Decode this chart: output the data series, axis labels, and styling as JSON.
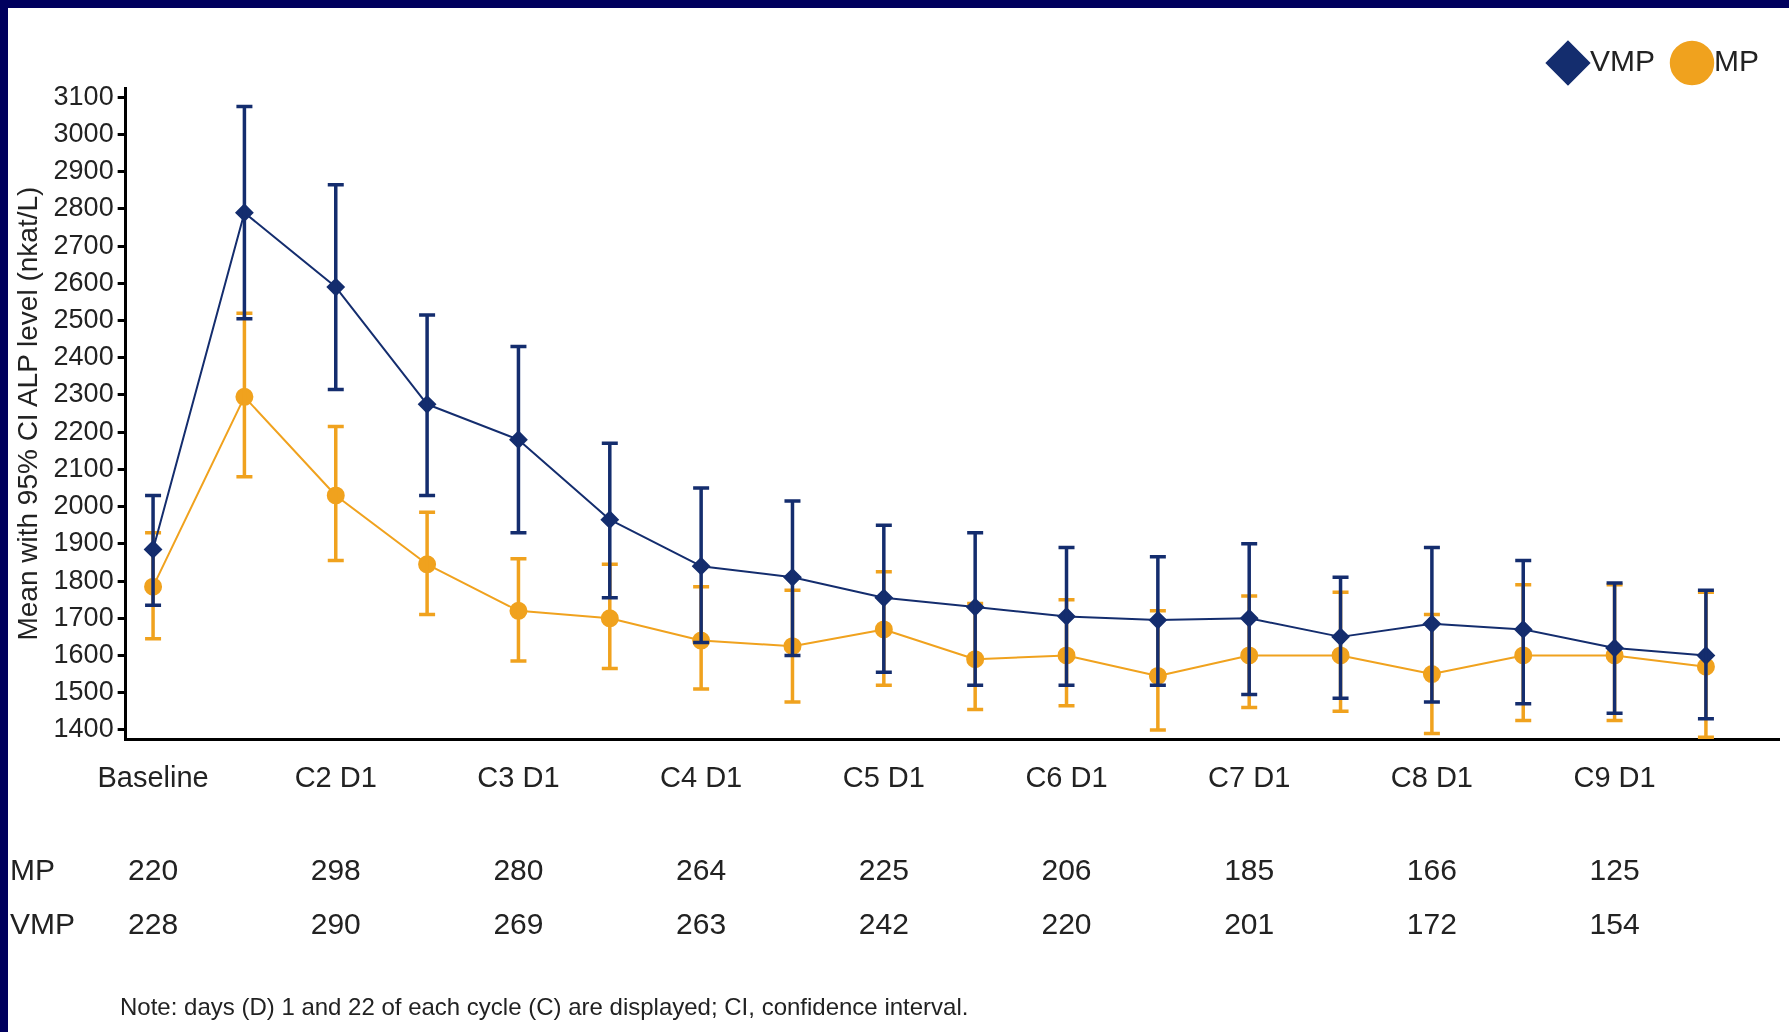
{
  "chart_data": {
    "type": "line",
    "ylabel": "Mean with 95% CI ALP level (nkat/L)",
    "categories": [
      "Baseline",
      null,
      "C2 D1",
      null,
      "C3 D1",
      null,
      "C4 D1",
      null,
      "C5 D1",
      null,
      "C6 D1",
      null,
      "C7 D1",
      null,
      "C8 D1",
      null,
      "C9 D1",
      null
    ],
    "ylim": [
      1375,
      3125
    ],
    "yticks": [
      1400,
      1500,
      1600,
      1700,
      1800,
      1900,
      2000,
      2100,
      2200,
      2300,
      2400,
      2500,
      2600,
      2700,
      2800,
      2900,
      3000,
      3100
    ],
    "legend": "top right",
    "line_style": "solid",
    "series": [
      {
        "name": "VMP",
        "color": "#142d6e",
        "marker": "diamond",
        "values": [
          1885,
          2790,
          2590,
          2275,
          2180,
          1965,
          1840,
          1810,
          1755,
          1730,
          1705,
          1695,
          1700,
          1650,
          1685,
          1670,
          1620,
          1600
        ],
        "errors": [
          [
            1735,
            2030
          ],
          [
            2505,
            3075
          ],
          [
            2315,
            2865
          ],
          [
            2030,
            2515
          ],
          [
            1930,
            2430
          ],
          [
            1755,
            2170
          ],
          [
            1635,
            2050
          ],
          [
            1600,
            2015
          ],
          [
            1555,
            1950
          ],
          [
            1520,
            1930
          ],
          [
            1520,
            1890
          ],
          [
            1520,
            1865
          ],
          [
            1495,
            1900
          ],
          [
            1485,
            1810
          ],
          [
            1475,
            1890
          ],
          [
            1470,
            1855
          ],
          [
            1445,
            1795
          ],
          [
            1430,
            1775
          ]
        ]
      },
      {
        "name": "MP",
        "color": "#f0a21e",
        "marker": "circle",
        "values": [
          1785,
          2295,
          2030,
          1845,
          1720,
          1700,
          1640,
          1625,
          1670,
          1590,
          1600,
          1545,
          1600,
          1600,
          1550,
          1600,
          1600,
          1570
        ],
        "errors": [
          [
            1645,
            1930
          ],
          [
            2080,
            2520
          ],
          [
            1855,
            2215
          ],
          [
            1710,
            1985
          ],
          [
            1585,
            1860
          ],
          [
            1565,
            1845
          ],
          [
            1510,
            1785
          ],
          [
            1475,
            1775
          ],
          [
            1520,
            1825
          ],
          [
            1455,
            1740
          ],
          [
            1465,
            1750
          ],
          [
            1400,
            1720
          ],
          [
            1460,
            1760
          ],
          [
            1450,
            1770
          ],
          [
            1390,
            1710
          ],
          [
            1425,
            1790
          ],
          [
            1425,
            1790
          ],
          [
            1380,
            1770
          ]
        ]
      }
    ],
    "annotations": [
      "MP 220 298 280 264 225 206 185 166 125",
      "VMP 228 290 269 263 242 220 201 172 154",
      "Note: days (D) 1 and 22 of each cycle (C) are displayed; CI, confidence interval."
    ]
  }
}
